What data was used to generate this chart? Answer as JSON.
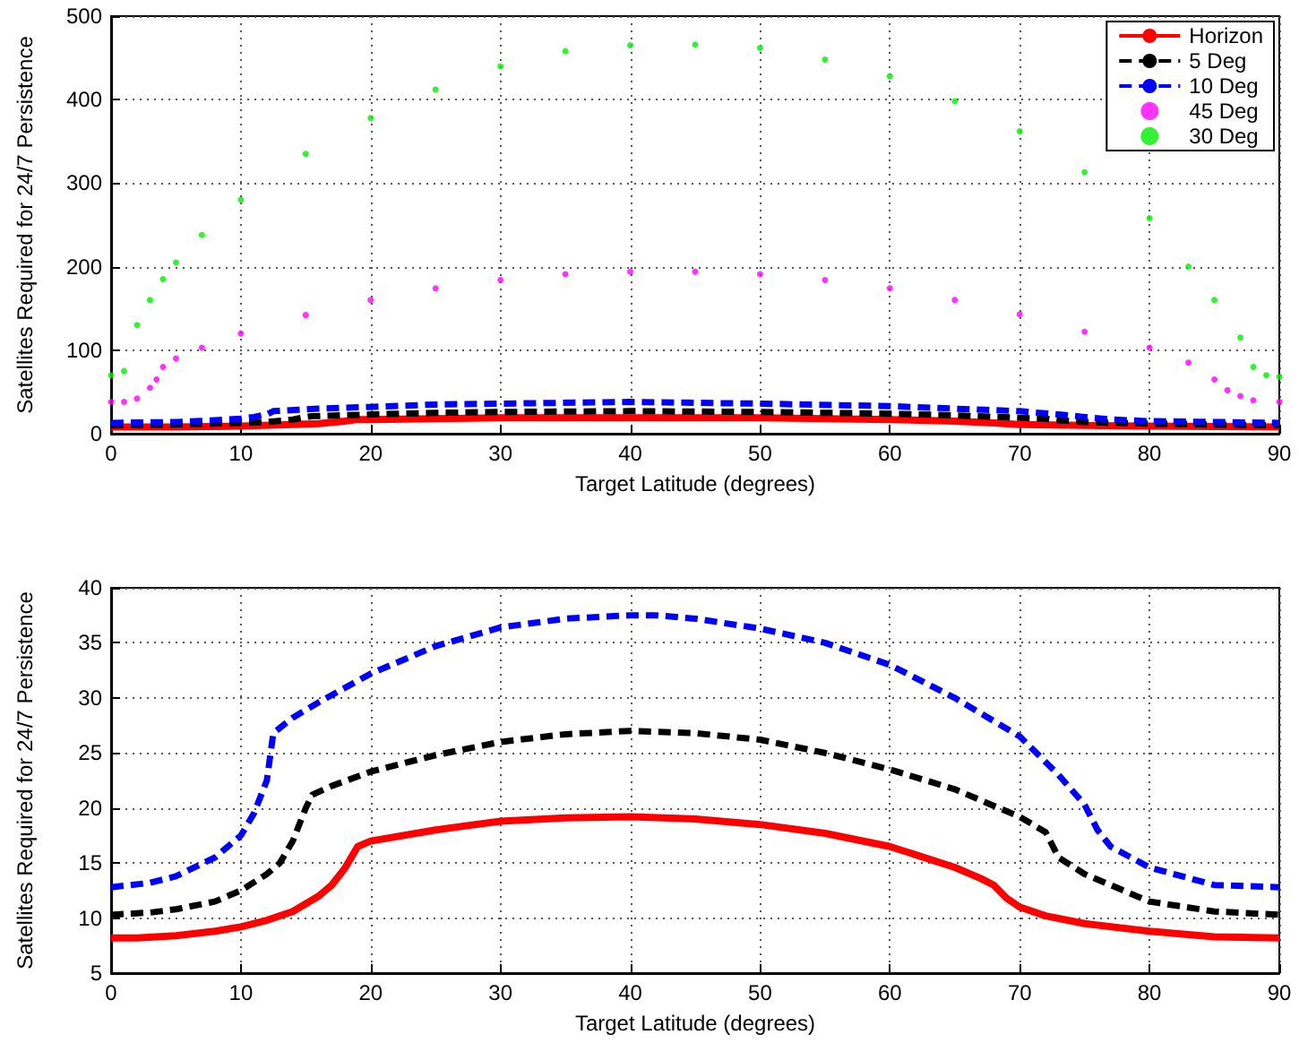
{
  "chart_data": [
    {
      "type": "line",
      "xlabel": "Target Latitude (degrees)",
      "ylabel": "Satellites Required for 24/7 Persistence",
      "xlim": [
        0,
        90
      ],
      "xticks": [
        0,
        10,
        20,
        30,
        40,
        50,
        60,
        70,
        80,
        90
      ],
      "ylim": [
        0,
        500
      ],
      "yticks": [
        0,
        100,
        200,
        300,
        400,
        500
      ],
      "grid": true,
      "legend": "top right",
      "series": [
        {
          "name": "Horizon",
          "color": "#ff0000",
          "line_style": "solid",
          "x": [
            0,
            5,
            10,
            14,
            16,
            18,
            19,
            20,
            25,
            30,
            40,
            50,
            60,
            65,
            68,
            70,
            75,
            80,
            90
          ],
          "values": [
            8,
            8,
            9,
            11,
            12,
            15,
            17,
            17,
            18,
            19,
            19,
            19,
            17,
            15,
            13,
            11,
            10,
            9,
            8
          ]
        },
        {
          "name": "5 Deg",
          "color": "#000000",
          "line_style": "dashed",
          "x": [
            0,
            5,
            10,
            12,
            14,
            15,
            15.5,
            20,
            25,
            30,
            40,
            50,
            60,
            65,
            70,
            72,
            73,
            75,
            80,
            90
          ],
          "values": [
            10,
            11,
            13,
            14,
            17,
            20,
            21,
            23,
            25,
            26,
            27,
            26,
            24,
            22,
            19,
            18,
            16,
            14,
            12,
            10
          ]
        },
        {
          "name": "10 Deg",
          "color": "#0000ff",
          "line_style": "dashed",
          "x": [
            0,
            5,
            8,
            10,
            11,
            12,
            12.5,
            16,
            20,
            25,
            30,
            40,
            50,
            60,
            65,
            70,
            73,
            75,
            77,
            80,
            90
          ],
          "values": [
            13,
            14,
            16,
            18,
            20,
            23,
            27,
            30,
            32,
            35,
            36,
            38,
            36,
            33,
            30,
            27,
            23,
            20,
            17,
            15,
            13
          ]
        },
        {
          "name": "45 Deg",
          "type": "scatter",
          "marker": "circle",
          "color": "#ff00ff",
          "x": [
            0,
            1,
            2,
            3,
            3.5,
            4,
            5,
            7,
            10,
            15,
            20,
            25,
            30,
            35,
            40,
            45,
            50,
            55,
            60,
            65,
            70,
            75,
            80,
            83,
            85,
            86,
            87,
            88,
            90
          ],
          "values": [
            38,
            38,
            42,
            55,
            65,
            80,
            90,
            103,
            120,
            142,
            160,
            174,
            184,
            191,
            194,
            194,
            191,
            184,
            174,
            160,
            143,
            122,
            103,
            85,
            65,
            52,
            45,
            40,
            38
          ]
        },
        {
          "name": "30 Deg",
          "type": "scatter",
          "marker": "circle",
          "color": "#00ee00",
          "x": [
            0,
            1,
            2,
            3,
            4,
            5,
            7,
            10,
            15,
            20,
            25,
            30,
            35,
            40,
            45,
            50,
            55,
            60,
            65,
            70,
            75,
            80,
            83,
            85,
            87,
            88,
            89,
            90
          ],
          "values": [
            70,
            75,
            130,
            160,
            185,
            205,
            238,
            280,
            335,
            378,
            412,
            440,
            458,
            465,
            466,
            462,
            448,
            428,
            398,
            362,
            313,
            258,
            200,
            160,
            115,
            80,
            70,
            68
          ]
        }
      ]
    },
    {
      "type": "line",
      "xlabel": "Target Latitude (degrees)",
      "ylabel": "Satellites Required for 24/7 Persistence",
      "xlim": [
        0,
        90
      ],
      "xticks": [
        0,
        10,
        20,
        30,
        40,
        50,
        60,
        70,
        80,
        90
      ],
      "ylim": [
        5,
        40
      ],
      "yticks": [
        5,
        10,
        15,
        20,
        25,
        30,
        35,
        40
      ],
      "grid": true,
      "series": [
        {
          "color": "#ff0000",
          "line_style": "solid",
          "x": [
            0,
            2,
            5,
            8,
            10,
            12,
            14,
            16,
            17,
            18,
            19,
            20,
            25,
            30,
            35,
            40,
            45,
            50,
            55,
            60,
            65,
            67,
            68,
            69,
            70,
            72,
            75,
            80,
            85,
            90
          ],
          "values": [
            8.2,
            8.2,
            8.4,
            8.8,
            9.2,
            9.8,
            10.6,
            12,
            13,
            14.5,
            16.5,
            17,
            18,
            18.8,
            19.1,
            19.2,
            19,
            18.5,
            17.7,
            16.5,
            14.6,
            13.6,
            13,
            11.8,
            11,
            10.2,
            9.5,
            8.8,
            8.3,
            8.2
          ]
        },
        {
          "color": "#000000",
          "line_style": "dashed",
          "x": [
            0,
            3,
            5,
            8,
            10,
            12,
            13,
            14,
            15,
            15.5,
            17,
            20,
            25,
            30,
            35,
            40,
            45,
            50,
            55,
            60,
            65,
            70,
            72,
            73,
            75,
            78,
            80,
            85,
            90
          ],
          "values": [
            10.3,
            10.5,
            10.8,
            11.5,
            12.5,
            14,
            15,
            17,
            20,
            21.2,
            22,
            23.3,
            24.8,
            26,
            26.7,
            27,
            26.8,
            26.2,
            25,
            23.5,
            21.7,
            19.2,
            17.8,
            15.5,
            14,
            12.5,
            11.5,
            10.6,
            10.3
          ]
        },
        {
          "color": "#0000ff",
          "line_style": "dashed",
          "x": [
            0,
            3,
            5,
            8,
            10,
            11,
            12,
            12.5,
            14,
            16,
            20,
            25,
            30,
            35,
            40,
            42,
            45,
            50,
            55,
            60,
            65,
            70,
            73,
            75,
            76,
            77,
            80,
            85,
            90
          ],
          "values": [
            12.8,
            13.2,
            13.8,
            15.5,
            17.5,
            19.5,
            22.5,
            26.8,
            28.2,
            29.6,
            32.2,
            34.7,
            36.4,
            37.2,
            37.5,
            37.5,
            37.2,
            36.3,
            35,
            33,
            30,
            26.5,
            23,
            20.3,
            18,
            16.5,
            14.6,
            13,
            12.8
          ]
        }
      ]
    }
  ]
}
